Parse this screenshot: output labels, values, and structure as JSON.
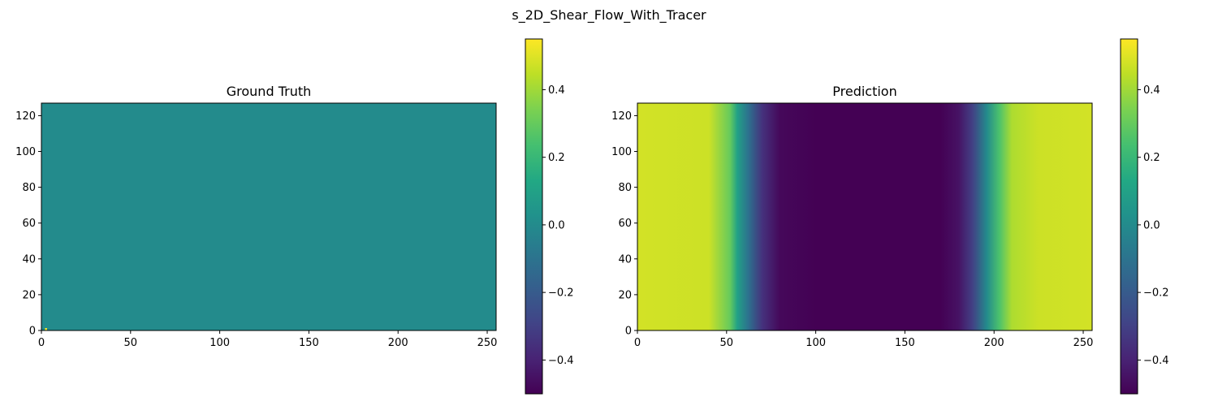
{
  "figure": {
    "title": "s_2D_Shear_Flow_With_Tracer"
  },
  "chart_data": [
    {
      "type": "heatmap",
      "title": "Ground Truth",
      "colormap": "viridis",
      "xlim": [
        0,
        255
      ],
      "ylim": [
        0,
        127
      ],
      "x_ticks": [
        "0",
        "50",
        "100",
        "150",
        "200",
        "250"
      ],
      "y_ticks": [
        "0",
        "20",
        "40",
        "60",
        "80",
        "100",
        "120"
      ],
      "field": {
        "description": "uniform field",
        "value": 0.0,
        "x_profile": [],
        "hotspot": {
          "x": 2,
          "y": 0,
          "value": 0.55
        }
      },
      "colorbar": {
        "vmin": -0.5,
        "vmax": 0.55,
        "ticks": [
          "−0.4",
          "−0.2",
          "0.0",
          "0.2",
          "0.4"
        ],
        "tick_values": [
          -0.4,
          -0.2,
          0.0,
          0.2,
          0.4
        ]
      }
    },
    {
      "type": "heatmap",
      "title": "Prediction",
      "colormap": "viridis",
      "xlim": [
        0,
        255
      ],
      "ylim": [
        0,
        127
      ],
      "x_ticks": [
        "0",
        "50",
        "100",
        "150",
        "200",
        "250"
      ],
      "y_ticks": [
        "0",
        "20",
        "40",
        "60",
        "80",
        "100",
        "120"
      ],
      "field": {
        "description": "varies along x only",
        "x_profile": [
          [
            0,
            0.48
          ],
          [
            40,
            0.47
          ],
          [
            52,
            0.3
          ],
          [
            56,
            0.1
          ],
          [
            62,
            -0.1
          ],
          [
            70,
            -0.35
          ],
          [
            80,
            -0.48
          ],
          [
            100,
            -0.5
          ],
          [
            170,
            -0.5
          ],
          [
            180,
            -0.45
          ],
          [
            188,
            -0.3
          ],
          [
            196,
            0.0
          ],
          [
            203,
            0.25
          ],
          [
            210,
            0.42
          ],
          [
            225,
            0.47
          ],
          [
            255,
            0.48
          ]
        ]
      },
      "colorbar": {
        "vmin": -0.5,
        "vmax": 0.55,
        "ticks": [
          "−0.4",
          "−0.2",
          "0.0",
          "0.2",
          "0.4"
        ],
        "tick_values": [
          -0.4,
          -0.2,
          0.0,
          0.2,
          0.4
        ]
      }
    }
  ]
}
